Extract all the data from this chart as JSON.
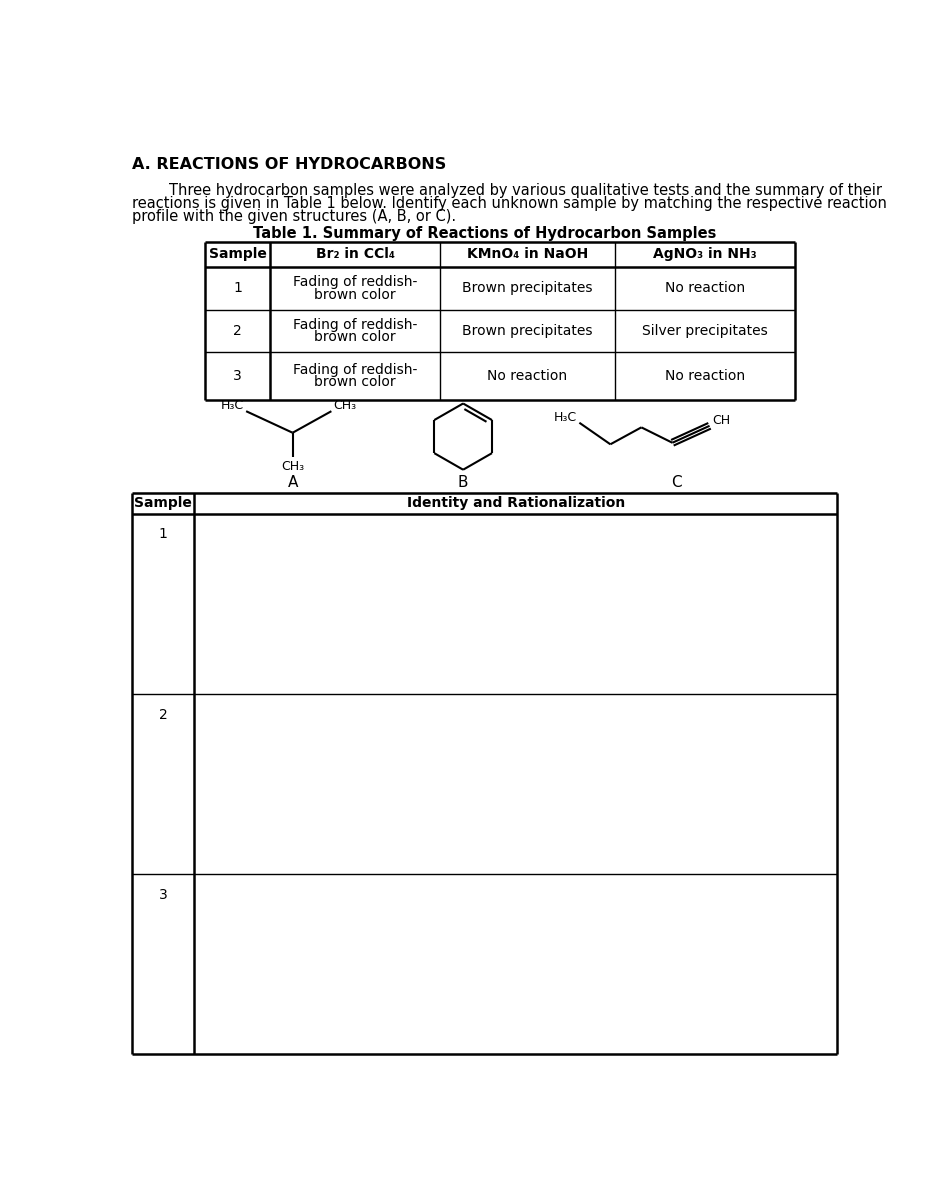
{
  "title": "A. REACTIONS OF HYDROCARBONS",
  "table1_title": "Table 1. Summary of Reactions of Hydrocarbon Samples",
  "table1_headers": [
    "Sample",
    "Br₂ in CCl₄",
    "KMnO₄ in NaOH",
    "AgNO₃ in NH₃"
  ],
  "table1_rows": [
    [
      "1",
      "Fading of reddish-\nbrown color",
      "Brown precipitates",
      "No reaction"
    ],
    [
      "2",
      "Fading of reddish-\nbrown color",
      "Brown precipitates",
      "Silver precipitates"
    ],
    [
      "3",
      "Fading of reddish-\nbrown color",
      "No reaction",
      "No reaction"
    ]
  ],
  "struct_labels": [
    "A",
    "B",
    "C"
  ],
  "table2_headers": [
    "Sample",
    "Identity and Rationalization"
  ],
  "table2_rows": [
    "1",
    "2",
    "3"
  ],
  "bg_color": "#ffffff",
  "text_color": "#000000",
  "title_fontsize": 11.5,
  "body_fontsize": 10.5,
  "table_fontsize": 10,
  "intro_line1": "        Three hydrocarbon samples were analyzed by various qualitative tests and the summary of their",
  "intro_line2": "reactions is given in Table 1 below. Identify each unknown sample by matching the respective reaction",
  "intro_line3": "profile with the given structures (A, B, or C)."
}
